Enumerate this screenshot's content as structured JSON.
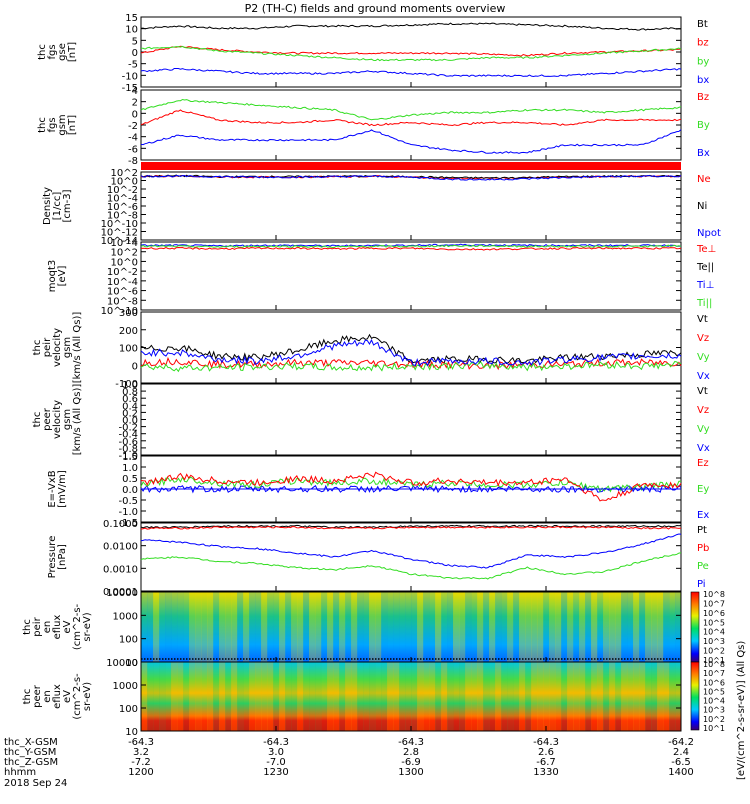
{
  "title": "P2 (TH-C) fields and ground moments overview",
  "date_label": "2018 Sep 24",
  "bottom_axis": {
    "row_labels": [
      "thc_X-GSM",
      "thc_Y-GSM",
      "thc_Z-GSM",
      "hhmm"
    ],
    "columns": [
      [
        "-64.3",
        "3.2",
        "-7.2",
        "1200"
      ],
      [
        "-64.3",
        "3.0",
        "-7.0",
        "1230"
      ],
      [
        "-64.3",
        "2.8",
        "-6.9",
        "1300"
      ],
      [
        "-64.3",
        "2.6",
        "-6.7",
        "1330"
      ],
      [
        "-64.2",
        "2.4",
        "-6.5",
        "1400"
      ]
    ]
  },
  "colorbar": {
    "label": "[eV/(cm^2-s-sr-eV)] (All Qs)",
    "upper_ticks": [
      "10^8",
      "10^7",
      "10^6",
      "10^5",
      "10^4",
      "10^3",
      "10^2",
      "10^1"
    ],
    "lower_ticks": [
      "10^8",
      "10^7",
      "10^6",
      "10^5",
      "10^4",
      "10^3",
      "10^2",
      "10^1"
    ]
  },
  "colors": {
    "black": "#000000",
    "red": "#ff0000",
    "green": "#33dd22",
    "blue": "#0000ff"
  },
  "chart_data": [
    {
      "type": "line",
      "id": "fgs",
      "ylabel": [
        "thc",
        "fgs",
        "gse",
        "[nT]"
      ],
      "yticks": [
        "15",
        "10",
        "5",
        "0",
        "-5",
        "-10",
        "-15"
      ],
      "ylim": [
        -15,
        16
      ],
      "legend": [
        {
          "name": "Bt",
          "color": "black"
        },
        {
          "name": "bz",
          "color": "red"
        },
        {
          "name": "by",
          "color": "green"
        },
        {
          "name": "bx",
          "color": "blue"
        }
      ],
      "series": [
        {
          "name": "Bt",
          "color": "black",
          "values": [
            11,
            12,
            11,
            11,
            12,
            12,
            12,
            12.5,
            13,
            13,
            12.5,
            12,
            11,
            10.5,
            11
          ]
        },
        {
          "name": "bz",
          "color": "red",
          "values": [
            0,
            3,
            1.5,
            0.5,
            0,
            0,
            0,
            0,
            0,
            -0.5,
            -1,
            0,
            0.5,
            1,
            1.5
          ]
        },
        {
          "name": "by",
          "color": "green",
          "values": [
            2,
            3,
            1,
            0,
            -1,
            -2,
            -3,
            -3,
            -3,
            -2,
            -2,
            -1,
            0,
            1,
            2
          ]
        },
        {
          "name": "bx",
          "color": "blue",
          "values": [
            -8,
            -7,
            -8,
            -9,
            -9,
            -9,
            -8,
            -9,
            -10,
            -10,
            -10,
            -10,
            -9,
            -8,
            -7
          ]
        }
      ]
    },
    {
      "type": "line",
      "id": "fgs_gsm",
      "ylabel": [
        "thc",
        "fgs",
        "gsm",
        "[nT]"
      ],
      "yticks": [
        "4",
        "2",
        "0",
        "-2",
        "-4",
        "-6",
        "-8"
      ],
      "ylim": [
        -9,
        5
      ],
      "legend": [
        {
          "name": "Bz",
          "color": "red"
        },
        {
          "name": "By",
          "color": "green"
        },
        {
          "name": "Bx",
          "color": "blue"
        }
      ],
      "series": [
        {
          "name": "Bz",
          "color": "red",
          "values": [
            -2,
            1,
            -1,
            -1.5,
            -1.5,
            -1,
            -2,
            -1.5,
            -2,
            -1.5,
            -1.5,
            -2,
            -1,
            -1,
            -1
          ]
        },
        {
          "name": "By",
          "color": "green",
          "values": [
            1,
            3,
            2.5,
            2,
            1.5,
            1,
            -1,
            0,
            0.5,
            0.5,
            1,
            1,
            0.5,
            1,
            1.5
          ]
        },
        {
          "name": "Bx",
          "color": "blue",
          "values": [
            -6,
            -4,
            -5,
            -5,
            -5,
            -5,
            -3,
            -6,
            -7,
            -7.5,
            -7.5,
            -6,
            -6,
            -6,
            -3
          ]
        }
      ]
    },
    {
      "type": "line",
      "id": "density",
      "ylabel": [
        "Density",
        "[1/cc]",
        "[cm-3]"
      ],
      "yticks": [
        "10^2",
        "10^0",
        "10^-2",
        "10^-4",
        "10^-6",
        "10^-8",
        "10^-10",
        "10^-12",
        "10^-14"
      ],
      "ylim": [
        -14,
        2
      ],
      "legend": [
        {
          "name": "Ne",
          "color": "red"
        },
        {
          "name": "Ni",
          "color": "black"
        },
        {
          "name": "Npot",
          "color": "blue"
        }
      ],
      "series": [
        {
          "name": "Ne",
          "color": "red",
          "values": [
            1,
            1,
            0.8,
            0.8,
            0.8,
            0.9,
            1,
            0.8,
            0.5,
            0.5,
            0.6,
            0.8,
            0.9,
            1,
            1
          ]
        },
        {
          "name": "Ni",
          "color": "black",
          "values": [
            1,
            1.1,
            0.9,
            0.9,
            0.9,
            1,
            1,
            0.9,
            0.7,
            0.6,
            0.7,
            0.9,
            1,
            1,
            1.1
          ]
        },
        {
          "name": "Npot",
          "color": "blue",
          "values": [
            1,
            1,
            0.9,
            0.8,
            0.8,
            0.9,
            1,
            0.8,
            0.3,
            0.2,
            0.4,
            0.7,
            0.9,
            1,
            1
          ]
        }
      ]
    },
    {
      "type": "line",
      "id": "temperature",
      "ylabel": [
        "moqt3",
        "[eV]"
      ],
      "yticks": [
        "10^4",
        "10^2",
        "10^0",
        "10^-2",
        "10^-4",
        "10^-6",
        "10^-8",
        "10^-10"
      ],
      "ylim": [
        -10,
        4
      ],
      "legend": [
        {
          "name": "Te⊥",
          "color": "red"
        },
        {
          "name": "Te||",
          "color": "black"
        },
        {
          "name": "Ti⊥",
          "color": "blue"
        },
        {
          "name": "Ti||",
          "color": "green"
        }
      ],
      "series": [
        {
          "name": "Ti",
          "color": "blue",
          "values": [
            3.3,
            3.3,
            3.2,
            3.3,
            3.3,
            3.2,
            3.3,
            3.3,
            3.4,
            3.4,
            3.3,
            3.3,
            3.3,
            3.3,
            3.3
          ]
        },
        {
          "name": "Ti||",
          "color": "green",
          "values": [
            3.1,
            3.1,
            3,
            3.1,
            3.1,
            3,
            3.1,
            3.1,
            3.2,
            3.2,
            3.1,
            3.1,
            3.1,
            3.1,
            3.2
          ]
        },
        {
          "name": "Te",
          "color": "red",
          "values": [
            2.7,
            2.7,
            2.6,
            2.7,
            2.7,
            2.6,
            2.7,
            2.7,
            2.5,
            2.5,
            2.6,
            2.7,
            2.7,
            2.7,
            2.7
          ]
        }
      ]
    },
    {
      "type": "line",
      "id": "peir_velocity",
      "ylabel": [
        "thc",
        "peir",
        "velocity",
        "gsm",
        "[km/s (All Qs)]"
      ],
      "yticks": [
        "300",
        "200",
        "100",
        "0",
        "-100"
      ],
      "ylim": [
        -100,
        320
      ],
      "legend": [
        {
          "name": "Vt",
          "color": "black"
        },
        {
          "name": "Vz",
          "color": "red"
        },
        {
          "name": "Vy",
          "color": "green"
        },
        {
          "name": "Vx",
          "color": "blue"
        }
      ],
      "series": [
        {
          "name": "Vt",
          "color": "black",
          "values": [
            100,
            110,
            60,
            50,
            90,
            150,
            170,
            30,
            40,
            40,
            30,
            50,
            60,
            70,
            80
          ]
        },
        {
          "name": "Vz",
          "color": "red",
          "values": [
            20,
            30,
            10,
            10,
            20,
            20,
            20,
            10,
            10,
            0,
            10,
            10,
            20,
            20,
            20
          ]
        },
        {
          "name": "Vy",
          "color": "green",
          "values": [
            0,
            -10,
            -10,
            -5,
            0,
            -10,
            -10,
            0,
            0,
            5,
            -5,
            0,
            10,
            0,
            10
          ]
        },
        {
          "name": "Vx",
          "color": "blue",
          "values": [
            80,
            80,
            40,
            30,
            60,
            120,
            140,
            20,
            30,
            30,
            20,
            40,
            50,
            60,
            60
          ]
        }
      ]
    },
    {
      "type": "line",
      "id": "peer_velocity",
      "ylabel": [
        "thc",
        "peer",
        "velocity",
        "gsm",
        "[km/s (All Qs)]"
      ],
      "yticks": [
        "1.0",
        "0.8",
        "0.6",
        "0.4",
        "0.2",
        "0.0",
        "-0.2",
        "-0.4",
        "-0.6",
        "-0.8",
        "-1.0"
      ],
      "ylim": [
        -1,
        1
      ],
      "legend": [
        {
          "name": "Vt",
          "color": "black"
        },
        {
          "name": "Vz",
          "color": "red"
        },
        {
          "name": "Vy",
          "color": "green"
        },
        {
          "name": "Vx",
          "color": "blue"
        }
      ],
      "series": []
    },
    {
      "type": "line",
      "id": "efield",
      "ylabel": [
        "E=-VxB",
        "[mV/m]"
      ],
      "yticks": [
        "1.5",
        "1.0",
        "0.5",
        "0.0",
        "-0.5",
        "-1.0",
        "-1.5"
      ],
      "ylim": [
        -1.6,
        1.6
      ],
      "legend": [
        {
          "name": "Ez",
          "color": "red"
        },
        {
          "name": "Ey",
          "color": "green"
        },
        {
          "name": "Ex",
          "color": "blue"
        }
      ],
      "series": [
        {
          "name": "Ex",
          "color": "blue",
          "values": [
            0,
            0,
            0,
            0,
            0,
            0,
            0,
            0,
            0,
            0,
            0,
            0,
            0,
            0,
            0
          ]
        },
        {
          "name": "Ey",
          "color": "green",
          "values": [
            0.2,
            0.5,
            0.3,
            0.2,
            0.4,
            0.3,
            0.4,
            0.2,
            0.3,
            0.2,
            0.2,
            0.3,
            0,
            0.1,
            0.3
          ]
        },
        {
          "name": "Ez",
          "color": "red",
          "values": [
            0.3,
            0.6,
            0.4,
            0.3,
            0.5,
            0.4,
            0.7,
            0.3,
            0.4,
            0.3,
            0.3,
            0.5,
            -0.6,
            0.2,
            0.2
          ]
        }
      ]
    },
    {
      "type": "line",
      "id": "pressure",
      "ylabel": [
        "Pressure",
        "[nPa]"
      ],
      "yticks": [
        "0.1000",
        "0.0100",
        "0.0010",
        "0.0001"
      ],
      "ylim": [
        -4,
        -0.8
      ],
      "legend": [
        {
          "name": "Pt",
          "color": "black"
        },
        {
          "name": "Pb",
          "color": "red"
        },
        {
          "name": "Pe",
          "color": "green"
        },
        {
          "name": "Pi",
          "color": "blue"
        }
      ],
      "series": [
        {
          "name": "Pt",
          "color": "black",
          "values": [
            -1,
            -1,
            -0.95,
            -0.95,
            -0.95,
            -1,
            -1,
            -0.95,
            -0.95,
            -0.95,
            -0.95,
            -0.95,
            -0.95,
            -0.95,
            -0.95
          ]
        },
        {
          "name": "Pb",
          "color": "red",
          "values": [
            -1.05,
            -1.05,
            -1,
            -1,
            -1,
            -1.05,
            -1.05,
            -1,
            -1,
            -1,
            -1,
            -1,
            -1,
            -1.05,
            -1.05
          ]
        },
        {
          "name": "Pi",
          "color": "blue",
          "values": [
            -1.6,
            -1.7,
            -1.9,
            -2,
            -2.2,
            -2.4,
            -2.1,
            -2.5,
            -2.8,
            -2.9,
            -2.3,
            -2.4,
            -2.2,
            -1.8,
            -1.3
          ]
        },
        {
          "name": "Pe",
          "color": "green",
          "values": [
            -2.5,
            -2.4,
            -2.6,
            -2.7,
            -2.9,
            -3,
            -2.8,
            -3.2,
            -3.4,
            -3.4,
            -2.9,
            -3.2,
            -3.1,
            -2.6,
            -2.2
          ]
        }
      ]
    },
    {
      "type": "heatmap",
      "id": "peir_en_eflux",
      "ylabel": [
        "thc",
        "peir",
        "en",
        "eflux",
        "eV",
        "(cm^2-s-",
        "sr-eV)"
      ],
      "yticks": [
        "10000",
        "1000",
        "100",
        "10"
      ]
    },
    {
      "type": "heatmap",
      "id": "peer_en_eflux",
      "ylabel": [
        "thc",
        "peer",
        "en",
        "eflux",
        "eV",
        "(cm^2-s-",
        "sr-eV)"
      ],
      "yticks": [
        "10000",
        "1000",
        "100",
        "10"
      ]
    }
  ]
}
